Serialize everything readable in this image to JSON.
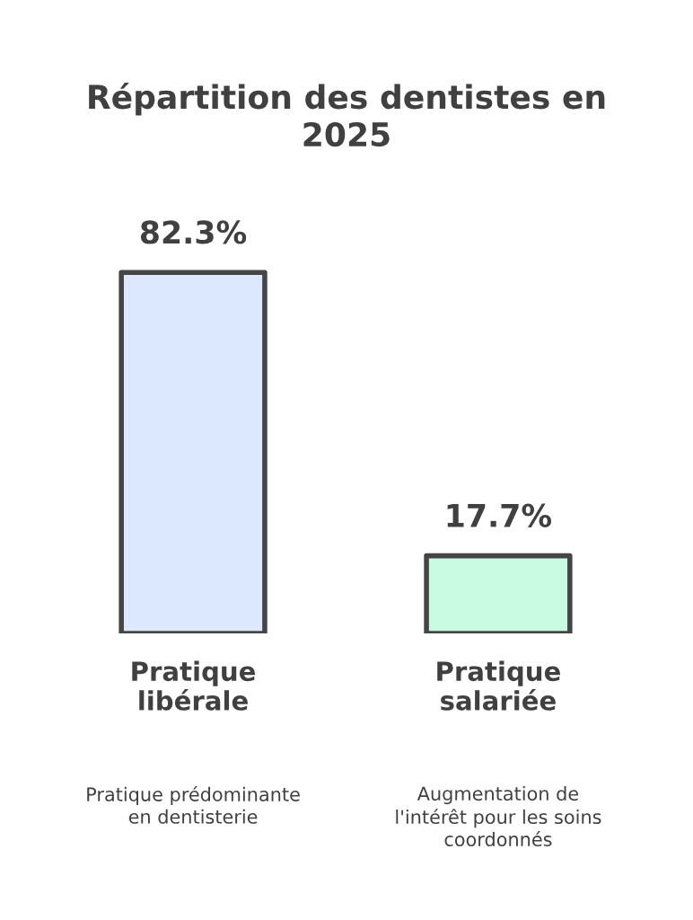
{
  "chart_data": {
    "type": "bar",
    "title": "Répartition des dentistes en 2025",
    "categories": [
      "Pratique libérale",
      "Pratique salariée"
    ],
    "values": [
      82.3,
      17.7
    ],
    "colors": [
      "#dbe8fd",
      "#c9fbe3"
    ],
    "value_labels": [
      "82.3%",
      "17.7%"
    ],
    "tick_labels": "x",
    "annotations": [
      "Pratique prédominante en dentisterie",
      "Augmentation de l'intérêt pour les soins coordonnés"
    ]
  }
}
